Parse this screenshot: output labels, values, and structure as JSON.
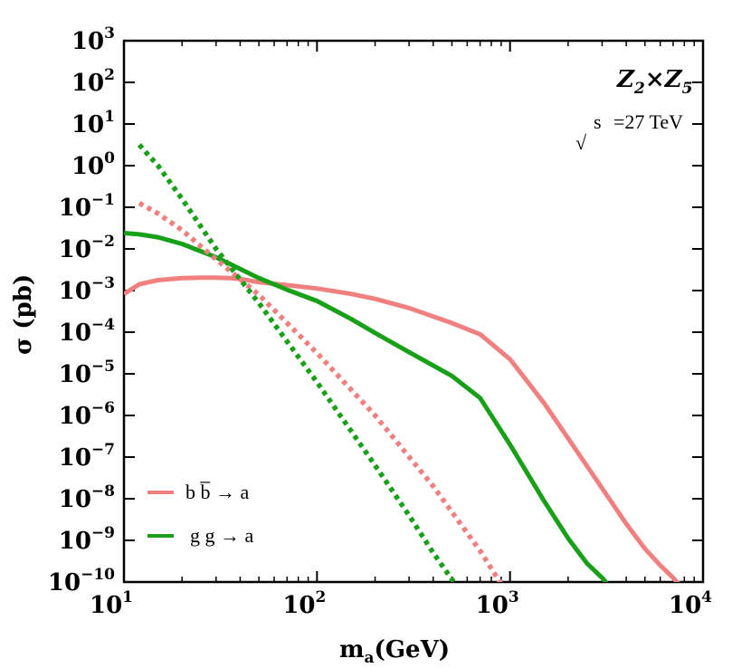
{
  "chart_data": {
    "type": "line",
    "title": "",
    "xlabel": "m",
    "xlabel_sub": "a",
    "xlabel_unit": "(GeV)",
    "ylabel": "σ (pb)",
    "xscale": "log",
    "yscale": "log",
    "xlim": [
      10,
      10000
    ],
    "ylim": [
      1e-10,
      1000
    ],
    "x_ticks": [
      {
        "base": "10",
        "exp": "1",
        "value": 10
      },
      {
        "base": "10",
        "exp": "2",
        "value": 100
      },
      {
        "base": "10",
        "exp": "3",
        "value": 1000
      },
      {
        "base": "10",
        "exp": "4",
        "value": 10000
      }
    ],
    "y_ticks": [
      {
        "base": "10",
        "exp": "3",
        "value": 3
      },
      {
        "base": "10",
        "exp": "2",
        "value": 2
      },
      {
        "base": "10",
        "exp": "1",
        "value": 1
      },
      {
        "base": "10",
        "exp": "0",
        "value": 0
      },
      {
        "base": "10",
        "exp": "−1",
        "value": -1
      },
      {
        "base": "10",
        "exp": "−2",
        "value": -2
      },
      {
        "base": "10",
        "exp": "−3",
        "value": -3
      },
      {
        "base": "10",
        "exp": "−4",
        "value": -4
      },
      {
        "base": "10",
        "exp": "−5",
        "value": -5
      },
      {
        "base": "10",
        "exp": "−6",
        "value": -6
      },
      {
        "base": "10",
        "exp": "−7",
        "value": -7
      },
      {
        "base": "10",
        "exp": "−8",
        "value": -8
      },
      {
        "base": "10",
        "exp": "−9",
        "value": -9
      },
      {
        "base": "10",
        "exp": "−10",
        "value": -10
      }
    ],
    "annotations": {
      "model_Z": "Z",
      "model_sub1": "2",
      "model_times": "×",
      "model_sub2": "5",
      "sqrt_symbol": "√",
      "energy_s": "s",
      "energy_text": "=27 TeV"
    },
    "legend": [
      {
        "label": "b b̅ → a",
        "color": "#f08080",
        "style": "solid"
      },
      {
        "label": "g g → a",
        "color": "#18a018",
        "style": "solid"
      }
    ],
    "series": [
      {
        "name": "bb→a solid",
        "color": "#f08080",
        "style": "solid",
        "x": [
          10,
          12,
          15,
          20,
          25,
          30,
          35,
          40,
          50,
          70,
          100,
          150,
          200,
          300,
          500,
          700,
          1000,
          1500,
          2000,
          3000,
          4000,
          5000,
          6000,
          7000,
          7500
        ],
        "log10y": [
          -3.08,
          -2.85,
          -2.75,
          -2.7,
          -2.69,
          -2.69,
          -2.7,
          -2.72,
          -2.8,
          -2.87,
          -2.95,
          -3.08,
          -3.2,
          -3.42,
          -3.78,
          -4.05,
          -4.65,
          -5.7,
          -6.55,
          -7.75,
          -8.6,
          -9.2,
          -9.6,
          -9.9,
          -10.05
        ]
      },
      {
        "name": "gg→a solid",
        "color": "#18a018",
        "style": "solid",
        "x": [
          10,
          12,
          15,
          20,
          30,
          40,
          50,
          70,
          100,
          150,
          200,
          300,
          500,
          700,
          1000,
          1500,
          2000,
          2500,
          3000,
          3200
        ],
        "log10y": [
          -1.62,
          -1.65,
          -1.72,
          -1.88,
          -2.2,
          -2.48,
          -2.7,
          -2.98,
          -3.25,
          -3.68,
          -4.02,
          -4.48,
          -5.05,
          -5.58,
          -6.7,
          -8.05,
          -8.95,
          -9.55,
          -9.9,
          -10.05
        ]
      },
      {
        "name": "bb→a dotted",
        "color": "#f08080",
        "style": "dotted",
        "x": [
          12,
          15,
          20,
          30,
          50,
          100,
          200,
          400,
          700,
          900
        ],
        "log10y": [
          -0.9,
          -1.15,
          -1.55,
          -2.25,
          -3.1,
          -4.5,
          -6.0,
          -7.7,
          -9.25,
          -10.05
        ]
      },
      {
        "name": "gg→a dotted",
        "color": "#18a018",
        "style": "dotted",
        "x": [
          12,
          15,
          20,
          30,
          50,
          100,
          200,
          300,
          400,
          520
        ],
        "log10y": [
          0.5,
          0.0,
          -0.8,
          -2.0,
          -3.3,
          -5.2,
          -7.2,
          -8.4,
          -9.3,
          -10.05
        ]
      }
    ]
  }
}
